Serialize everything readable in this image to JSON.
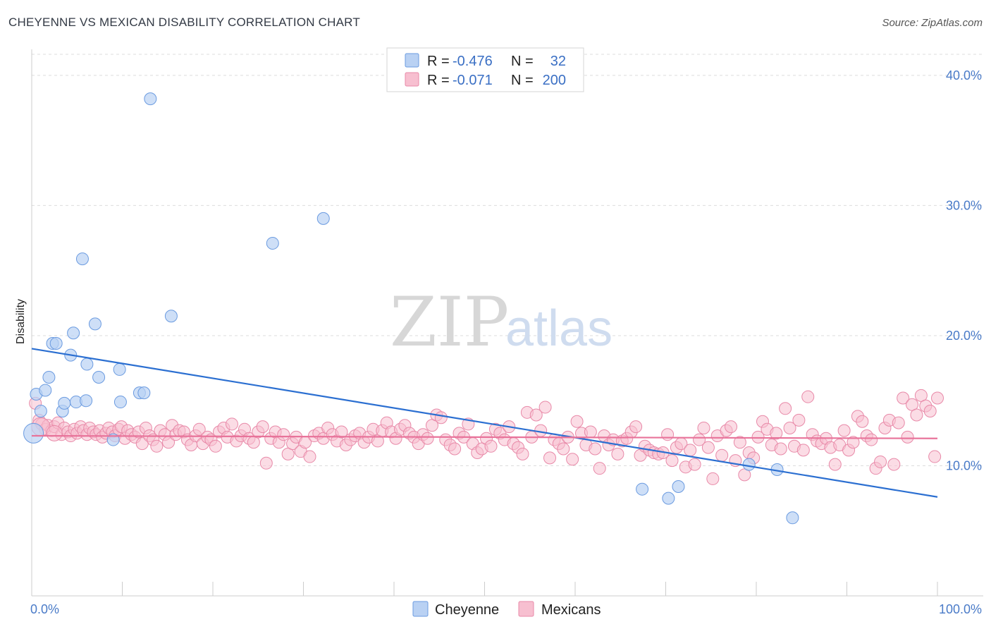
{
  "title": "CHEYENNE VS MEXICAN DISABILITY CORRELATION CHART",
  "source": "Source: ZipAtlas.com",
  "watermark": {
    "zip": "ZIP",
    "atlas": "atlas"
  },
  "colors": {
    "cheyenne_fill": "#b9d1f3",
    "cheyenne_stroke": "#6b9be0",
    "cheyenne_line": "#2b6fd1",
    "mexican_fill": "#f7bfd0",
    "mexican_stroke": "#e889a8",
    "mexican_line": "#e8739a",
    "axis_text": "#4a7bc8"
  },
  "legend": {
    "cheyenne": {
      "r_label": "R = ",
      "r_value": "-0.476",
      "n_label": "N = ",
      "n_value": "32"
    },
    "mexican": {
      "r_label": "R = ",
      "r_value": "-0.071",
      "n_label": "N = ",
      "n_value": "200"
    }
  },
  "chart_data": {
    "type": "scatter",
    "title": "CHEYENNE VS MEXICAN DISABILITY CORRELATION CHART",
    "xlabel": "",
    "ylabel": "Disability",
    "xlim": [
      0,
      100
    ],
    "ylim": [
      0,
      42
    ],
    "x_tick_labels": [
      "0.0%",
      "100.0%"
    ],
    "y_ticks": [
      10,
      20,
      30,
      40
    ],
    "y_tick_labels": [
      "10.0%",
      "20.0%",
      "30.0%",
      "40.0%"
    ],
    "grid": true,
    "legend_position": "bottom-center",
    "series": [
      {
        "name": "Cheyenne",
        "trend": [
          [
            0,
            19.0
          ],
          [
            100,
            7.6
          ]
        ],
        "points": [
          [
            0.2,
            12.5
          ],
          [
            0.5,
            15.5
          ],
          [
            1.0,
            14.2
          ],
          [
            1.5,
            15.8
          ],
          [
            1.9,
            16.8
          ],
          [
            2.3,
            19.4
          ],
          [
            2.7,
            19.4
          ],
          [
            3.4,
            14.2
          ],
          [
            3.6,
            14.8
          ],
          [
            4.3,
            18.5
          ],
          [
            4.6,
            20.2
          ],
          [
            4.9,
            14.9
          ],
          [
            5.6,
            25.9
          ],
          [
            6.0,
            15.0
          ],
          [
            6.1,
            17.8
          ],
          [
            7.0,
            20.9
          ],
          [
            7.4,
            16.8
          ],
          [
            9.0,
            12.0
          ],
          [
            9.7,
            17.4
          ],
          [
            9.8,
            14.9
          ],
          [
            11.9,
            15.6
          ],
          [
            12.4,
            15.6
          ],
          [
            13.1,
            38.2
          ],
          [
            15.4,
            21.5
          ],
          [
            26.6,
            27.1
          ],
          [
            32.2,
            29.0
          ],
          [
            67.4,
            8.2
          ],
          [
            70.3,
            7.5
          ],
          [
            71.4,
            8.4
          ],
          [
            79.2,
            10.1
          ],
          [
            82.3,
            9.7
          ],
          [
            84.0,
            6.0
          ]
        ]
      },
      {
        "name": "Mexicans",
        "trend": [
          [
            0,
            12.3
          ],
          [
            100,
            12.1
          ]
        ],
        "points": [
          [
            0.4,
            14.8
          ],
          [
            0.8,
            13.5
          ],
          [
            1.1,
            13.2
          ],
          [
            1.5,
            12.8
          ],
          [
            1.8,
            13.1
          ],
          [
            2.2,
            12.7
          ],
          [
            2.5,
            13.0
          ],
          [
            2.9,
            13.3
          ],
          [
            3.3,
            12.4
          ],
          [
            3.6,
            12.9
          ],
          [
            4.0,
            12.6
          ],
          [
            4.3,
            12.3
          ],
          [
            4.7,
            12.8
          ],
          [
            5.0,
            12.5
          ],
          [
            5.4,
            13.0
          ],
          [
            5.7,
            12.7
          ],
          [
            6.1,
            12.4
          ],
          [
            6.4,
            12.9
          ],
          [
            6.8,
            12.6
          ],
          [
            7.1,
            12.4
          ],
          [
            7.5,
            12.7
          ],
          [
            7.8,
            12.2
          ],
          [
            8.2,
            12.5
          ],
          [
            8.5,
            12.9
          ],
          [
            8.9,
            12.6
          ],
          [
            9.2,
            12.3
          ],
          [
            9.6,
            12.8
          ],
          [
            9.9,
            13.0
          ],
          [
            10.3,
            12.1
          ],
          [
            10.6,
            12.7
          ],
          [
            11.0,
            12.4
          ],
          [
            11.4,
            12.2
          ],
          [
            11.8,
            12.6
          ],
          [
            12.2,
            11.7
          ],
          [
            12.6,
            12.9
          ],
          [
            13.0,
            12.3
          ],
          [
            13.4,
            12.0
          ],
          [
            13.8,
            11.5
          ],
          [
            14.2,
            12.7
          ],
          [
            14.7,
            12.4
          ],
          [
            15.1,
            11.8
          ],
          [
            15.5,
            13.1
          ],
          [
            15.9,
            12.4
          ],
          [
            16.3,
            12.7
          ],
          [
            16.8,
            12.6
          ],
          [
            17.2,
            12.0
          ],
          [
            17.6,
            11.6
          ],
          [
            18.1,
            12.3
          ],
          [
            18.5,
            12.8
          ],
          [
            18.9,
            11.7
          ],
          [
            19.4,
            12.2
          ],
          [
            19.8,
            12.0
          ],
          [
            20.3,
            11.5
          ],
          [
            20.7,
            12.6
          ],
          [
            21.2,
            12.9
          ],
          [
            21.6,
            12.2
          ],
          [
            22.1,
            13.2
          ],
          [
            22.6,
            11.9
          ],
          [
            23.1,
            12.3
          ],
          [
            23.5,
            12.8
          ],
          [
            24.0,
            12.1
          ],
          [
            24.5,
            11.8
          ],
          [
            25.0,
            12.6
          ],
          [
            25.5,
            13.0
          ],
          [
            25.9,
            10.2
          ],
          [
            26.4,
            12.1
          ],
          [
            26.9,
            12.6
          ],
          [
            27.3,
            11.8
          ],
          [
            27.8,
            12.4
          ],
          [
            28.3,
            10.9
          ],
          [
            28.8,
            11.7
          ],
          [
            29.2,
            12.2
          ],
          [
            29.7,
            11.1
          ],
          [
            30.2,
            11.8
          ],
          [
            30.7,
            10.7
          ],
          [
            31.2,
            12.3
          ],
          [
            31.7,
            12.5
          ],
          [
            32.2,
            12.1
          ],
          [
            32.7,
            12.9
          ],
          [
            33.2,
            12.4
          ],
          [
            33.7,
            11.9
          ],
          [
            34.2,
            12.6
          ],
          [
            34.7,
            11.6
          ],
          [
            35.2,
            12.0
          ],
          [
            35.7,
            12.3
          ],
          [
            36.2,
            12.5
          ],
          [
            36.7,
            11.8
          ],
          [
            37.2,
            12.2
          ],
          [
            37.7,
            12.8
          ],
          [
            38.2,
            11.9
          ],
          [
            38.7,
            12.7
          ],
          [
            39.2,
            13.3
          ],
          [
            39.7,
            12.6
          ],
          [
            40.2,
            12.1
          ],
          [
            40.7,
            12.8
          ],
          [
            41.2,
            13.1
          ],
          [
            41.7,
            12.5
          ],
          [
            42.2,
            12.2
          ],
          [
            42.7,
            11.7
          ],
          [
            43.2,
            12.4
          ],
          [
            43.7,
            12.1
          ],
          [
            44.2,
            13.1
          ],
          [
            44.7,
            13.9
          ],
          [
            45.2,
            13.7
          ],
          [
            45.7,
            12.0
          ],
          [
            46.2,
            11.6
          ],
          [
            46.7,
            11.3
          ],
          [
            47.2,
            12.5
          ],
          [
            47.7,
            12.2
          ],
          [
            48.2,
            13.2
          ],
          [
            48.7,
            11.7
          ],
          [
            49.2,
            11.0
          ],
          [
            49.7,
            11.3
          ],
          [
            50.2,
            12.1
          ],
          [
            50.7,
            11.5
          ],
          [
            51.2,
            12.8
          ],
          [
            51.7,
            12.5
          ],
          [
            52.2,
            12.0
          ],
          [
            52.7,
            13.0
          ],
          [
            53.2,
            11.7
          ],
          [
            53.7,
            11.4
          ],
          [
            54.2,
            10.9
          ],
          [
            54.7,
            14.1
          ],
          [
            55.2,
            12.2
          ],
          [
            55.7,
            13.9
          ],
          [
            56.2,
            12.7
          ],
          [
            56.7,
            14.5
          ],
          [
            57.2,
            10.6
          ],
          [
            57.7,
            12.0
          ],
          [
            58.2,
            11.7
          ],
          [
            58.7,
            11.3
          ],
          [
            59.2,
            12.2
          ],
          [
            59.7,
            10.5
          ],
          [
            60.2,
            13.4
          ],
          [
            60.7,
            12.5
          ],
          [
            61.2,
            11.6
          ],
          [
            61.7,
            12.6
          ],
          [
            62.2,
            11.3
          ],
          [
            62.7,
            9.8
          ],
          [
            63.2,
            12.3
          ],
          [
            63.7,
            11.6
          ],
          [
            64.2,
            12.0
          ],
          [
            64.7,
            10.9
          ],
          [
            65.2,
            11.9
          ],
          [
            65.7,
            12.1
          ],
          [
            66.2,
            12.6
          ],
          [
            66.7,
            13.0
          ],
          [
            67.2,
            10.8
          ],
          [
            67.7,
            11.5
          ],
          [
            68.2,
            11.2
          ],
          [
            68.7,
            11.0
          ],
          [
            69.2,
            10.9
          ],
          [
            69.7,
            11.0
          ],
          [
            70.2,
            12.4
          ],
          [
            70.7,
            10.4
          ],
          [
            71.2,
            11.4
          ],
          [
            71.7,
            11.7
          ],
          [
            72.2,
            9.9
          ],
          [
            72.7,
            11.2
          ],
          [
            73.2,
            10.1
          ],
          [
            73.7,
            12.0
          ],
          [
            74.2,
            12.9
          ],
          [
            74.7,
            11.4
          ],
          [
            75.2,
            9.0
          ],
          [
            75.7,
            12.3
          ],
          [
            76.2,
            10.8
          ],
          [
            76.7,
            12.7
          ],
          [
            77.2,
            13.0
          ],
          [
            77.7,
            10.4
          ],
          [
            78.2,
            11.8
          ],
          [
            78.7,
            9.3
          ],
          [
            79.2,
            11.0
          ],
          [
            79.7,
            10.6
          ],
          [
            80.2,
            12.2
          ],
          [
            80.7,
            13.4
          ],
          [
            81.2,
            12.8
          ],
          [
            81.7,
            11.6
          ],
          [
            82.2,
            12.5
          ],
          [
            82.7,
            11.3
          ],
          [
            83.2,
            14.4
          ],
          [
            83.7,
            12.9
          ],
          [
            84.2,
            11.5
          ],
          [
            84.7,
            13.5
          ],
          [
            85.2,
            11.2
          ],
          [
            85.7,
            15.3
          ],
          [
            86.2,
            12.4
          ],
          [
            86.7,
            11.9
          ],
          [
            87.2,
            11.7
          ],
          [
            87.7,
            12.1
          ],
          [
            88.2,
            11.4
          ],
          [
            88.7,
            10.1
          ],
          [
            89.2,
            11.6
          ],
          [
            89.7,
            12.7
          ],
          [
            90.2,
            11.2
          ],
          [
            90.7,
            11.8
          ],
          [
            91.2,
            13.8
          ],
          [
            91.7,
            13.4
          ],
          [
            92.2,
            12.3
          ],
          [
            92.7,
            12.0
          ],
          [
            93.2,
            9.8
          ],
          [
            93.7,
            10.3
          ],
          [
            94.2,
            12.9
          ],
          [
            94.7,
            13.5
          ],
          [
            95.2,
            10.1
          ],
          [
            95.7,
            13.3
          ],
          [
            96.2,
            15.2
          ],
          [
            96.7,
            12.2
          ],
          [
            97.2,
            14.7
          ],
          [
            97.7,
            13.9
          ],
          [
            98.2,
            15.4
          ],
          [
            98.7,
            14.6
          ],
          [
            99.2,
            14.2
          ],
          [
            99.7,
            10.7
          ],
          [
            100.0,
            15.2
          ]
        ]
      }
    ]
  },
  "bottom_legend": {
    "cheyenne": "Cheyenne",
    "mexicans": "Mexicans"
  }
}
